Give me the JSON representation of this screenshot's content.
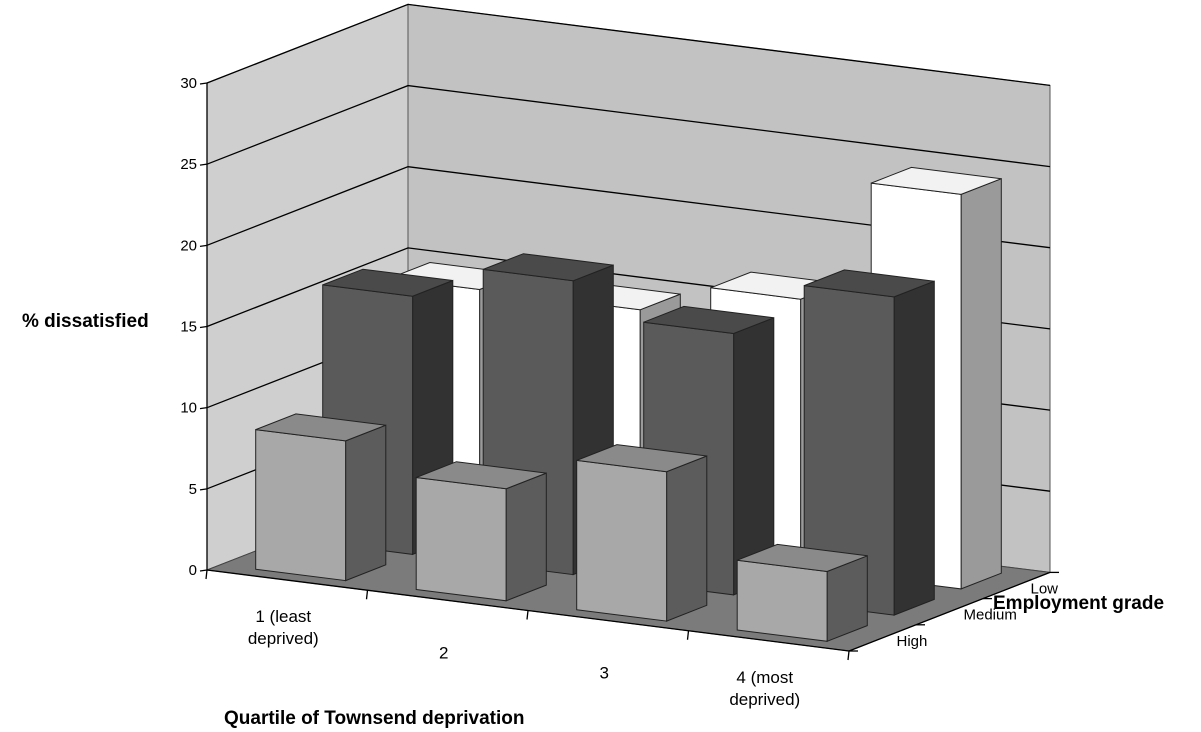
{
  "chart_data": {
    "type": "bar",
    "subtype": "3d-column",
    "ylabel": "% dissatisfied",
    "xlabel": "Quartile of Townsend deprivation",
    "zlabel": "Employment grade",
    "ylim": [
      0,
      30
    ],
    "yticks": [
      "0",
      "5",
      "10",
      "15",
      "20",
      "25",
      "30"
    ],
    "grid": true,
    "categories": [
      "1 (least\ndeprived)",
      "2",
      "3",
      "4 (most\ndeprived)"
    ],
    "series": [
      {
        "name": "High",
        "color": "#a8a8a8",
        "values": [
          8.6,
          6.9,
          9.2,
          4.3
        ]
      },
      {
        "name": "Medium",
        "color": "#5a5a5a",
        "values": [
          15.9,
          18.1,
          16.1,
          19.6
        ]
      },
      {
        "name": "Low",
        "color": "#ffffff",
        "values": [
          14.7,
          14.7,
          16.6,
          24.3
        ]
      }
    ]
  }
}
